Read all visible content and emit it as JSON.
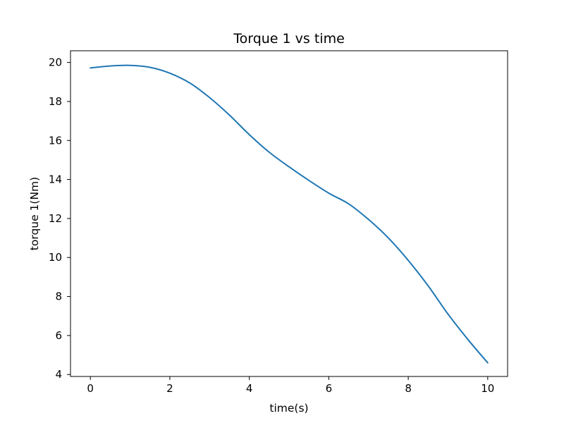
{
  "chart_data": {
    "type": "line",
    "title": "Torque 1 vs time",
    "xlabel": "time(s)",
    "ylabel": "torque 1(Nm)",
    "xlim": [
      -0.5,
      10.5
    ],
    "ylim": [
      3.9,
      20.6
    ],
    "xticks": [
      0,
      2,
      4,
      6,
      8,
      10
    ],
    "yticks": [
      4,
      6,
      8,
      10,
      12,
      14,
      16,
      18,
      20
    ],
    "grid": false,
    "series": [
      {
        "color": "#1f77b4",
        "x": [
          0,
          0.5,
          1,
          1.5,
          2,
          2.5,
          3,
          3.5,
          4,
          4.5,
          5,
          5.5,
          6,
          6.5,
          7,
          7.5,
          8,
          8.5,
          9,
          9.5,
          10
        ],
        "y": [
          19.72,
          19.82,
          19.85,
          19.75,
          19.45,
          18.95,
          18.2,
          17.3,
          16.3,
          15.4,
          14.65,
          13.95,
          13.3,
          12.75,
          11.95,
          11.0,
          9.85,
          8.55,
          7.1,
          5.8,
          4.6
        ]
      }
    ]
  }
}
